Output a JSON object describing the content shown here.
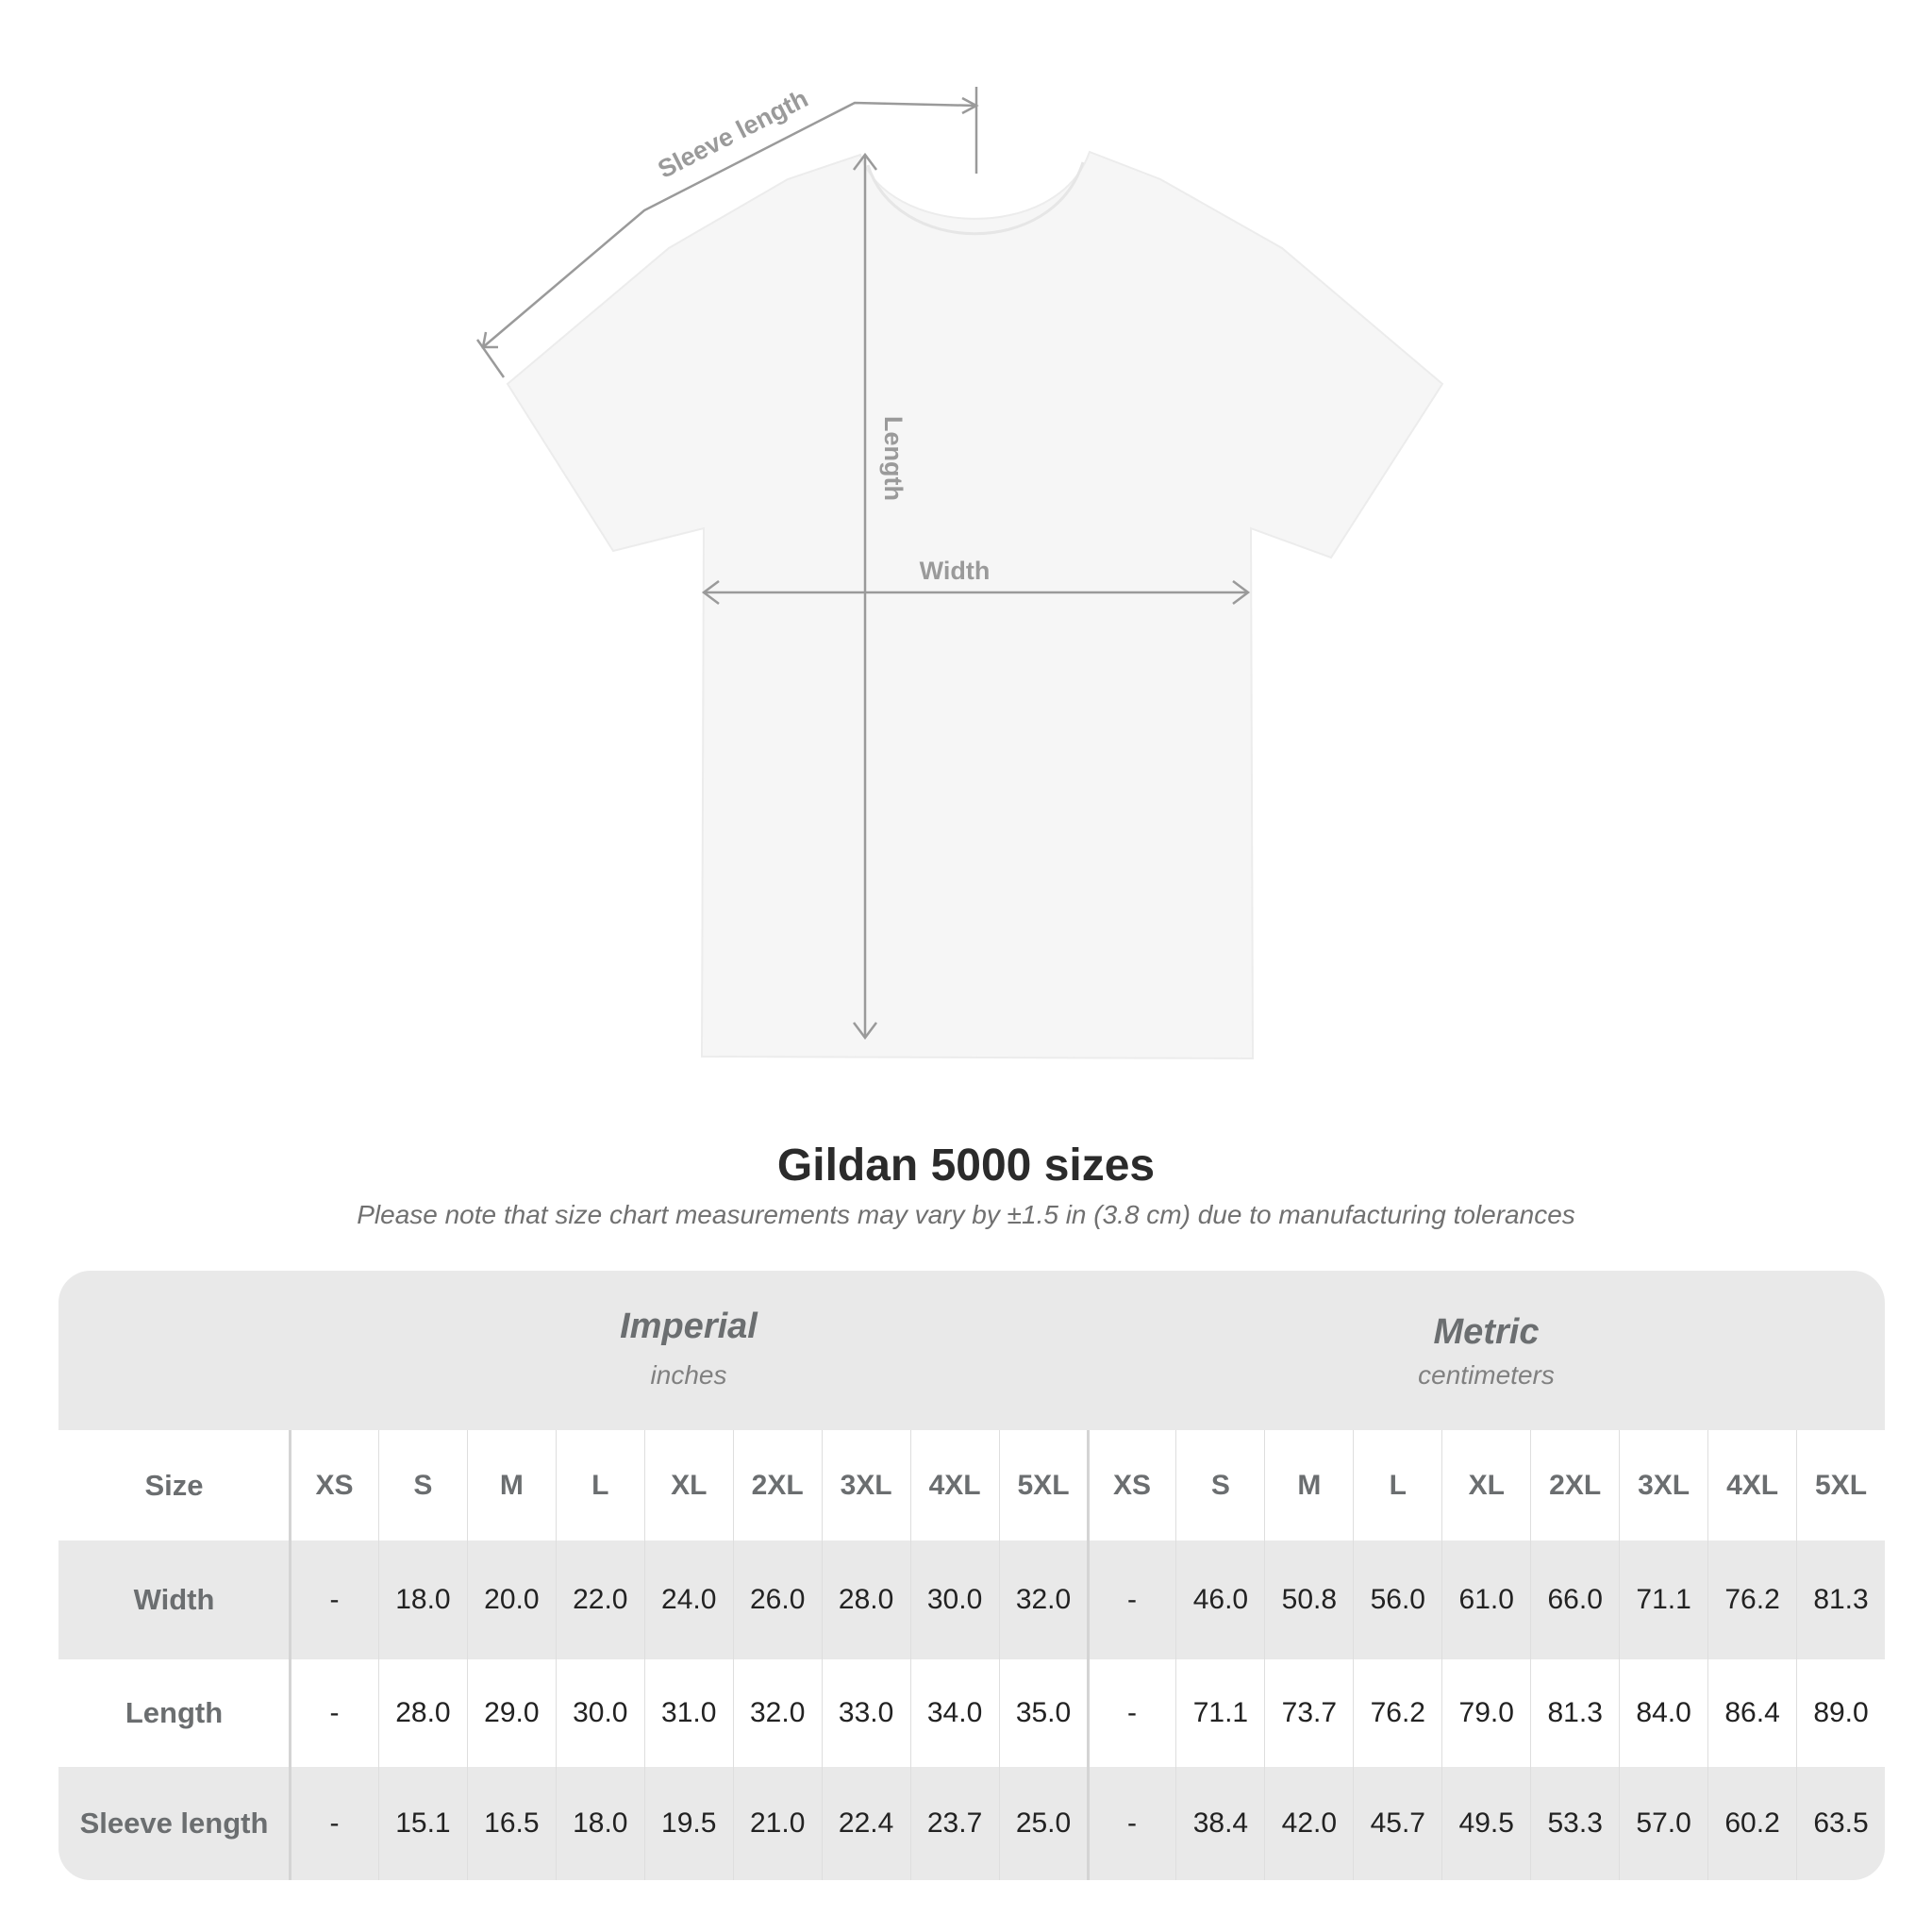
{
  "diagram": {
    "labels": {
      "sleeve": "Sleeve length",
      "length": "Length",
      "width": "Width"
    },
    "colors": {
      "shirt": "#f6f6f6",
      "annotation": "#9a9a9a"
    }
  },
  "title": "Gildan 5000 sizes",
  "subtitle": "Please note that size chart measurements may vary by ±1.5 in (3.8 cm) due to manufacturing tolerances",
  "table": {
    "imperial": {
      "title": "Imperial",
      "unit": "inches"
    },
    "metric": {
      "title": "Metric",
      "unit": "centimeters"
    },
    "size_label": "Size",
    "sizes": [
      "XS",
      "S",
      "M",
      "L",
      "XL",
      "2XL",
      "3XL",
      "4XL",
      "5XL"
    ],
    "rows": [
      {
        "label": "Width",
        "imperial": [
          "-",
          "18.0",
          "20.0",
          "22.0",
          "24.0",
          "26.0",
          "28.0",
          "30.0",
          "32.0"
        ],
        "metric": [
          "-",
          "46.0",
          "50.8",
          "56.0",
          "61.0",
          "66.0",
          "71.1",
          "76.2",
          "81.3"
        ]
      },
      {
        "label": "Length",
        "imperial": [
          "-",
          "28.0",
          "29.0",
          "30.0",
          "31.0",
          "32.0",
          "33.0",
          "34.0",
          "35.0"
        ],
        "metric": [
          "-",
          "71.1",
          "73.7",
          "76.2",
          "79.0",
          "81.3",
          "84.0",
          "86.4",
          "89.0"
        ]
      },
      {
        "label": "Sleeve length",
        "imperial": [
          "-",
          "15.1",
          "16.5",
          "18.0",
          "19.5",
          "21.0",
          "22.4",
          "23.7",
          "25.0"
        ],
        "metric": [
          "-",
          "38.4",
          "42.0",
          "45.7",
          "49.5",
          "53.3",
          "57.0",
          "60.2",
          "63.5"
        ]
      }
    ]
  }
}
